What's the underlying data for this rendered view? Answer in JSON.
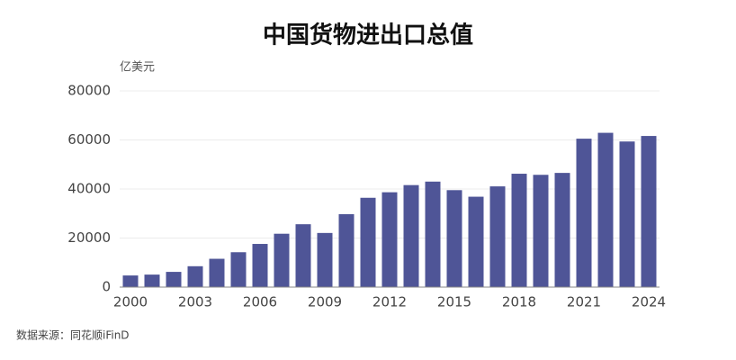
{
  "chart_data": {
    "type": "bar",
    "title": "中国货物进出口总值",
    "y_label": "亿美元",
    "source": "数据来源：同花顺iFinD",
    "categories": [
      "2000",
      null,
      null,
      "2003",
      null,
      null,
      "2006",
      null,
      null,
      "2009",
      null,
      null,
      "2012",
      null,
      null,
      "2015",
      null,
      null,
      "2018",
      null,
      null,
      "2021",
      null,
      null,
      "2024"
    ],
    "values": [
      4743,
      5097,
      6208,
      8510,
      11546,
      14219,
      17604,
      21761,
      25632,
      22075,
      29740,
      36419,
      38671,
      41590,
      43015,
      39530,
      36856,
      41071,
      46224,
      45779,
      46559,
      60515,
      62909,
      59368,
      61623
    ],
    "color": "#4f5597",
    "ylim": [
      0,
      80000
    ],
    "yticks": [
      0,
      20000,
      40000,
      60000,
      80000
    ],
    "grid": true
  }
}
